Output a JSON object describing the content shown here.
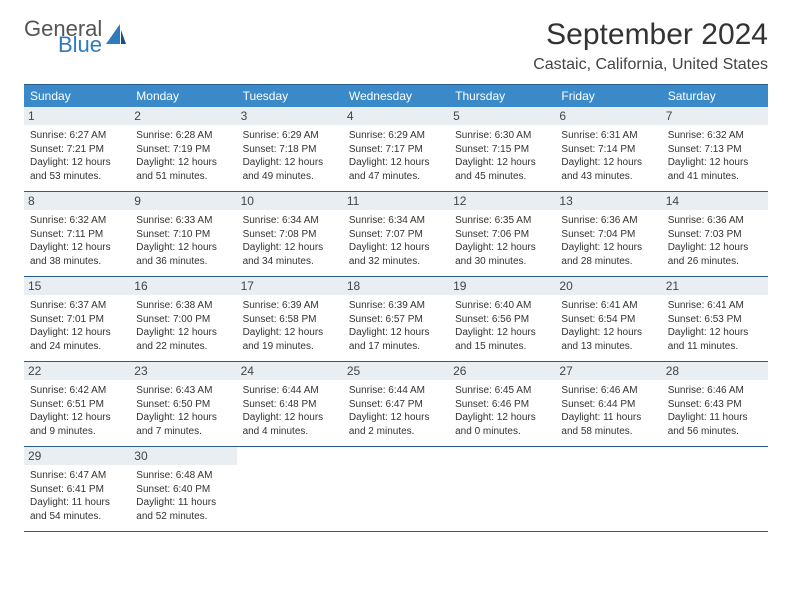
{
  "brand": {
    "general": "General",
    "blue": "Blue"
  },
  "title": "September 2024",
  "location": "Castaic, California, United States",
  "colors": {
    "header_bg": "#3a8ac9",
    "header_text": "#ffffff",
    "border": "#2a5d8f",
    "daynum_bg": "#e9eef2",
    "brand_blue": "#2f7bbf"
  },
  "day_headers": [
    "Sunday",
    "Monday",
    "Tuesday",
    "Wednesday",
    "Thursday",
    "Friday",
    "Saturday"
  ],
  "weeks": [
    [
      {
        "n": "1",
        "sr": "Sunrise: 6:27 AM",
        "ss": "Sunset: 7:21 PM",
        "d1": "Daylight: 12 hours",
        "d2": "and 53 minutes."
      },
      {
        "n": "2",
        "sr": "Sunrise: 6:28 AM",
        "ss": "Sunset: 7:19 PM",
        "d1": "Daylight: 12 hours",
        "d2": "and 51 minutes."
      },
      {
        "n": "3",
        "sr": "Sunrise: 6:29 AM",
        "ss": "Sunset: 7:18 PM",
        "d1": "Daylight: 12 hours",
        "d2": "and 49 minutes."
      },
      {
        "n": "4",
        "sr": "Sunrise: 6:29 AM",
        "ss": "Sunset: 7:17 PM",
        "d1": "Daylight: 12 hours",
        "d2": "and 47 minutes."
      },
      {
        "n": "5",
        "sr": "Sunrise: 6:30 AM",
        "ss": "Sunset: 7:15 PM",
        "d1": "Daylight: 12 hours",
        "d2": "and 45 minutes."
      },
      {
        "n": "6",
        "sr": "Sunrise: 6:31 AM",
        "ss": "Sunset: 7:14 PM",
        "d1": "Daylight: 12 hours",
        "d2": "and 43 minutes."
      },
      {
        "n": "7",
        "sr": "Sunrise: 6:32 AM",
        "ss": "Sunset: 7:13 PM",
        "d1": "Daylight: 12 hours",
        "d2": "and 41 minutes."
      }
    ],
    [
      {
        "n": "8",
        "sr": "Sunrise: 6:32 AM",
        "ss": "Sunset: 7:11 PM",
        "d1": "Daylight: 12 hours",
        "d2": "and 38 minutes."
      },
      {
        "n": "9",
        "sr": "Sunrise: 6:33 AM",
        "ss": "Sunset: 7:10 PM",
        "d1": "Daylight: 12 hours",
        "d2": "and 36 minutes."
      },
      {
        "n": "10",
        "sr": "Sunrise: 6:34 AM",
        "ss": "Sunset: 7:08 PM",
        "d1": "Daylight: 12 hours",
        "d2": "and 34 minutes."
      },
      {
        "n": "11",
        "sr": "Sunrise: 6:34 AM",
        "ss": "Sunset: 7:07 PM",
        "d1": "Daylight: 12 hours",
        "d2": "and 32 minutes."
      },
      {
        "n": "12",
        "sr": "Sunrise: 6:35 AM",
        "ss": "Sunset: 7:06 PM",
        "d1": "Daylight: 12 hours",
        "d2": "and 30 minutes."
      },
      {
        "n": "13",
        "sr": "Sunrise: 6:36 AM",
        "ss": "Sunset: 7:04 PM",
        "d1": "Daylight: 12 hours",
        "d2": "and 28 minutes."
      },
      {
        "n": "14",
        "sr": "Sunrise: 6:36 AM",
        "ss": "Sunset: 7:03 PM",
        "d1": "Daylight: 12 hours",
        "d2": "and 26 minutes."
      }
    ],
    [
      {
        "n": "15",
        "sr": "Sunrise: 6:37 AM",
        "ss": "Sunset: 7:01 PM",
        "d1": "Daylight: 12 hours",
        "d2": "and 24 minutes."
      },
      {
        "n": "16",
        "sr": "Sunrise: 6:38 AM",
        "ss": "Sunset: 7:00 PM",
        "d1": "Daylight: 12 hours",
        "d2": "and 22 minutes."
      },
      {
        "n": "17",
        "sr": "Sunrise: 6:39 AM",
        "ss": "Sunset: 6:58 PM",
        "d1": "Daylight: 12 hours",
        "d2": "and 19 minutes."
      },
      {
        "n": "18",
        "sr": "Sunrise: 6:39 AM",
        "ss": "Sunset: 6:57 PM",
        "d1": "Daylight: 12 hours",
        "d2": "and 17 minutes."
      },
      {
        "n": "19",
        "sr": "Sunrise: 6:40 AM",
        "ss": "Sunset: 6:56 PM",
        "d1": "Daylight: 12 hours",
        "d2": "and 15 minutes."
      },
      {
        "n": "20",
        "sr": "Sunrise: 6:41 AM",
        "ss": "Sunset: 6:54 PM",
        "d1": "Daylight: 12 hours",
        "d2": "and 13 minutes."
      },
      {
        "n": "21",
        "sr": "Sunrise: 6:41 AM",
        "ss": "Sunset: 6:53 PM",
        "d1": "Daylight: 12 hours",
        "d2": "and 11 minutes."
      }
    ],
    [
      {
        "n": "22",
        "sr": "Sunrise: 6:42 AM",
        "ss": "Sunset: 6:51 PM",
        "d1": "Daylight: 12 hours",
        "d2": "and 9 minutes."
      },
      {
        "n": "23",
        "sr": "Sunrise: 6:43 AM",
        "ss": "Sunset: 6:50 PM",
        "d1": "Daylight: 12 hours",
        "d2": "and 7 minutes."
      },
      {
        "n": "24",
        "sr": "Sunrise: 6:44 AM",
        "ss": "Sunset: 6:48 PM",
        "d1": "Daylight: 12 hours",
        "d2": "and 4 minutes."
      },
      {
        "n": "25",
        "sr": "Sunrise: 6:44 AM",
        "ss": "Sunset: 6:47 PM",
        "d1": "Daylight: 12 hours",
        "d2": "and 2 minutes."
      },
      {
        "n": "26",
        "sr": "Sunrise: 6:45 AM",
        "ss": "Sunset: 6:46 PM",
        "d1": "Daylight: 12 hours",
        "d2": "and 0 minutes."
      },
      {
        "n": "27",
        "sr": "Sunrise: 6:46 AM",
        "ss": "Sunset: 6:44 PM",
        "d1": "Daylight: 11 hours",
        "d2": "and 58 minutes."
      },
      {
        "n": "28",
        "sr": "Sunrise: 6:46 AM",
        "ss": "Sunset: 6:43 PM",
        "d1": "Daylight: 11 hours",
        "d2": "and 56 minutes."
      }
    ],
    [
      {
        "n": "29",
        "sr": "Sunrise: 6:47 AM",
        "ss": "Sunset: 6:41 PM",
        "d1": "Daylight: 11 hours",
        "d2": "and 54 minutes."
      },
      {
        "n": "30",
        "sr": "Sunrise: 6:48 AM",
        "ss": "Sunset: 6:40 PM",
        "d1": "Daylight: 11 hours",
        "d2": "and 52 minutes."
      },
      null,
      null,
      null,
      null,
      null
    ]
  ]
}
